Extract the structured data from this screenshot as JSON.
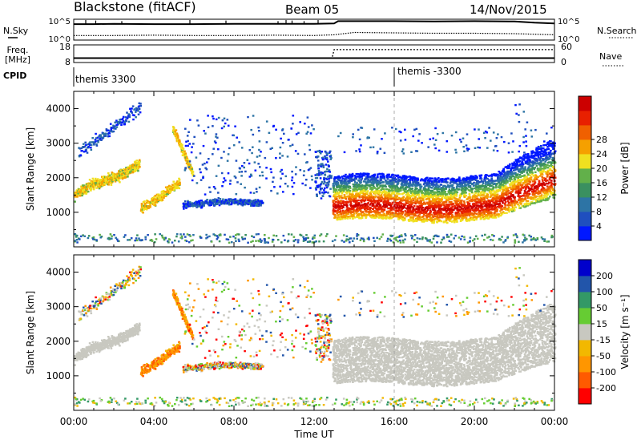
{
  "header": {
    "title": "Blackstone (fitACF)",
    "beam": "Beam 05",
    "date": "14/Nov/2015"
  },
  "labels": {
    "nsky": "N.Sky",
    "nsearch": "N.Search",
    "freq": "Freq.",
    "mhz": "[MHz]",
    "nave": "Nave",
    "cpid": "CPID",
    "cpid_left": "themis 3300",
    "cpid_right": "themis -3300",
    "xlabel": "Time UT"
  },
  "colors": {
    "power": [
      "#0018ff",
      "#1f4fbf",
      "#2d74a5",
      "#3a9060",
      "#62b04a",
      "#f0e020",
      "#f5a000",
      "#f06000",
      "#e82000",
      "#cc0000"
    ],
    "velocity": [
      "#ff0000",
      "#ff5a00",
      "#ff9600",
      "#f2b800",
      "#c8c8c0",
      "#66cc33",
      "#339966",
      "#2255aa",
      "#0000cc"
    ],
    "gs": "#c8c8c0"
  },
  "chart_data": [
    {
      "type": "line",
      "name": "noise-panel",
      "left_labels": [
        "10^5",
        "10^0"
      ],
      "right_labels": [
        "10^5",
        "10^0"
      ],
      "series": [
        {
          "name": "N.Sky",
          "x": [
            0,
            1,
            2,
            4,
            6,
            8,
            10,
            12,
            13,
            13.2,
            14,
            16,
            18,
            20,
            22,
            23,
            24
          ],
          "values": [
            4.2,
            4.2,
            4.3,
            4.2,
            4.2,
            4.3,
            4.3,
            4.3,
            4.4,
            5.0,
            5.0,
            5.0,
            4.9,
            5.0,
            4.9,
            4.6,
            4.4
          ]
        },
        {
          "name": "N.Search",
          "x": [
            0,
            2,
            4,
            6,
            8,
            10,
            12,
            13,
            14,
            16,
            18,
            20,
            22,
            24
          ],
          "values": [
            1.2,
            1.2,
            1.3,
            1.2,
            1.2,
            1.3,
            1.2,
            1.4,
            2.0,
            1.9,
            1.8,
            1.8,
            1.7,
            1.4
          ]
        }
      ],
      "xlim": [
        0,
        24
      ]
    },
    {
      "type": "line",
      "name": "freq-nave-panel",
      "left_ticks": [
        18,
        8
      ],
      "right_ticks": [
        60,
        0
      ],
      "series": [
        {
          "name": "Freq.",
          "x": [
            0,
            24
          ],
          "values": [
            10.5,
            10.5
          ]
        },
        {
          "name": "Nave",
          "x": [
            0,
            12.9,
            13.0,
            24
          ],
          "values": [
            16,
            16,
            44,
            44
          ]
        }
      ],
      "xlim": [
        0,
        24
      ]
    },
    {
      "type": "heatmap",
      "name": "power-panel",
      "ylabel": "Slant Range [km]",
      "yticks": [
        1000,
        2000,
        3000,
        4000
      ],
      "ylim": [
        0,
        4500
      ],
      "xlim": [
        0,
        24
      ],
      "colorbar": {
        "label": "Power [dB]",
        "ticks": [
          4,
          8,
          12,
          16,
          20,
          24,
          28
        ]
      }
    },
    {
      "type": "heatmap",
      "name": "velocity-panel",
      "ylabel": "Slant Range [km]",
      "yticks": [
        1000,
        2000,
        3000,
        4000
      ],
      "ylim": [
        0,
        4500
      ],
      "xlim": [
        0,
        24
      ],
      "xticks": [
        "00:00",
        "04:00",
        "08:00",
        "12:00",
        "16:00",
        "20:00",
        "00:00"
      ],
      "colorbar": {
        "label": "Velocity [m s⁻¹]",
        "ticks": [
          200,
          100,
          50,
          15,
          -15,
          -50,
          -100,
          -200
        ]
      }
    }
  ]
}
